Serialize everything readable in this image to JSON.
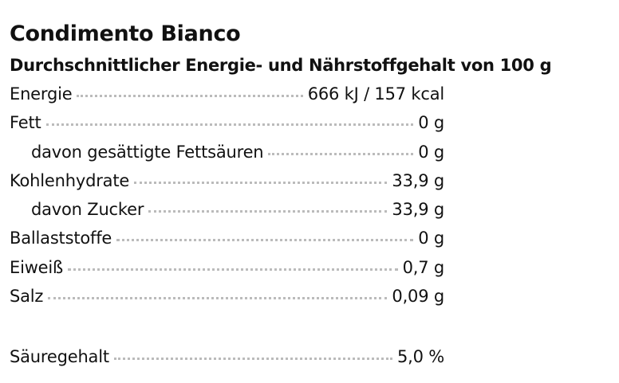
{
  "header": {
    "title": "Condimento Bianco",
    "subtitle": "Durchschnittlicher Energie- und Nährstoffgehalt von 100 g"
  },
  "table": {
    "rows": [
      [
        "Energie",
        "666 kJ / 157 kcal"
      ],
      [
        "Fett",
        "0 g"
      ],
      [
        "davon gesättigte Fettsäuren",
        "0 g"
      ],
      [
        "Kohlenhydrate",
        "33,9 g"
      ],
      [
        "davon Zucker",
        "33,9 g"
      ],
      [
        "Ballaststoffe",
        "0 g"
      ],
      [
        "Eiweiß",
        "0,7 g"
      ],
      [
        "Salz",
        "0,09 g"
      ]
    ]
  },
  "acidity": [
    "Säuregehalt",
    "5,0 %"
  ]
}
